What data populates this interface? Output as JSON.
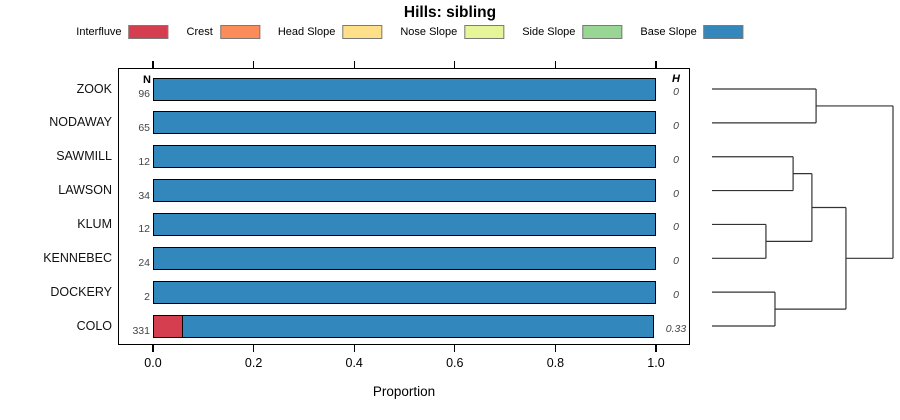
{
  "title": "Hills: sibling",
  "legend": {
    "items": [
      {
        "label": "Interfluve",
        "color": "#D53E4F"
      },
      {
        "label": "Crest",
        "color": "#FC8D59"
      },
      {
        "label": "Head Slope",
        "color": "#FEE08B"
      },
      {
        "label": "Nose Slope",
        "color": "#E6F598"
      },
      {
        "label": "Side Slope",
        "color": "#99D594"
      },
      {
        "label": "Base Slope",
        "color": "#3288BD"
      }
    ]
  },
  "chart_data": {
    "type": "bar",
    "orientation": "horizontal_stacked",
    "title": "Hills: sibling",
    "xlabel": "Proportion",
    "xlim": [
      0,
      1
    ],
    "x_ticks": [
      0.0,
      0.2,
      0.4,
      0.6,
      0.8,
      1.0
    ],
    "x_tick_labels": [
      "0.0",
      "0.2",
      "0.4",
      "0.6",
      "0.8",
      "1.0"
    ],
    "axis_ticks_mirrored_top": true,
    "n_column_header": "N",
    "h_column_header": "H",
    "rows": [
      {
        "series": "ZOOK",
        "n": "96",
        "h": "0",
        "segments": [
          {
            "class": "Base Slope",
            "value": 1.0
          }
        ]
      },
      {
        "series": "NODAWAY",
        "n": "65",
        "h": "0",
        "segments": [
          {
            "class": "Base Slope",
            "value": 1.0
          }
        ]
      },
      {
        "series": "SAWMILL",
        "n": "12",
        "h": "0",
        "segments": [
          {
            "class": "Base Slope",
            "value": 1.0
          }
        ]
      },
      {
        "series": "LAWSON",
        "n": "34",
        "h": "0",
        "segments": [
          {
            "class": "Base Slope",
            "value": 1.0
          }
        ]
      },
      {
        "series": "KLUM",
        "n": "12",
        "h": "0",
        "segments": [
          {
            "class": "Base Slope",
            "value": 1.0
          }
        ]
      },
      {
        "series": "KENNEBEC",
        "n": "24",
        "h": "0",
        "segments": [
          {
            "class": "Base Slope",
            "value": 1.0
          }
        ]
      },
      {
        "series": "DOCKERY",
        "n": "2",
        "h": "0",
        "segments": [
          {
            "class": "Base Slope",
            "value": 1.0
          }
        ]
      },
      {
        "series": "COLO",
        "n": "331",
        "h": "0.33",
        "segments": [
          {
            "class": "Interfluve",
            "value": 0.06
          },
          {
            "class": "Base Slope",
            "value": 0.94
          }
        ]
      }
    ],
    "dendrogram": {
      "height": 1.0,
      "children": [
        {
          "height": 0.575,
          "children": [
            {
              "leaf": "ZOOK"
            },
            {
              "leaf": "NODAWAY"
            }
          ]
        },
        {
          "height": 0.74,
          "children": [
            {
              "height": 0.552,
              "children": [
                {
                  "height": 0.448,
                  "children": [
                    {
                      "leaf": "SAWMILL"
                    },
                    {
                      "leaf": "LAWSON"
                    }
                  ]
                },
                {
                  "height": 0.298,
                  "children": [
                    {
                      "leaf": "KLUM"
                    },
                    {
                      "leaf": "KENNEBEC"
                    }
                  ]
                }
              ]
            },
            {
              "height": 0.348,
              "children": [
                {
                  "leaf": "DOCKERY"
                },
                {
                  "leaf": "COLO"
                }
              ]
            }
          ]
        }
      ]
    }
  }
}
